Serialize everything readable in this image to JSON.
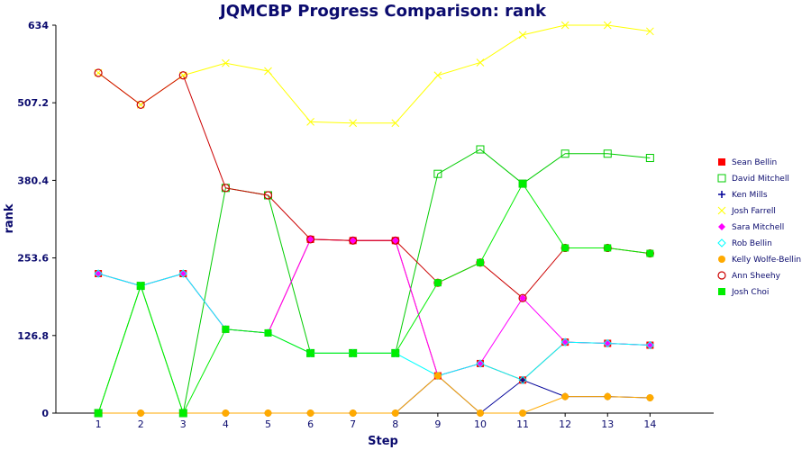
{
  "chart_data": {
    "type": "line",
    "title": "JQMCBP Progress Comparison: rank",
    "xlabel": "Step",
    "ylabel": "rank",
    "x": [
      1,
      2,
      3,
      4,
      5,
      6,
      7,
      8,
      9,
      10,
      11,
      12,
      13,
      14
    ],
    "xlim": [
      0,
      15.5
    ],
    "ylim": [
      0,
      634
    ],
    "yticks": [
      "0",
      "126.8",
      "253.6",
      "380.4",
      "507.2",
      "634"
    ],
    "grid": false,
    "legend_position": "right",
    "series": [
      {
        "name": "Sean Bellin",
        "color": "#ff0000",
        "marker": "square-filled",
        "values": [
          228,
          208,
          228,
          137,
          131,
          284,
          282,
          282,
          61,
          81,
          54,
          116,
          114,
          111
        ]
      },
      {
        "name": "David Mitchell",
        "color": "#00cc00",
        "marker": "square-open",
        "values": [
          0,
          208,
          0,
          368,
          356,
          98,
          98,
          98,
          391,
          431,
          375,
          424,
          424,
          417
        ]
      },
      {
        "name": "Ken Mills",
        "color": "#000099",
        "marker": "plus",
        "values": [
          0,
          0,
          0,
          0,
          0,
          0,
          0,
          0,
          61,
          0,
          54,
          27,
          27,
          25
        ]
      },
      {
        "name": "Josh Farrell",
        "color": "#ffff00",
        "marker": "cross",
        "values": [
          556,
          504,
          552,
          572,
          559,
          476,
          474,
          474,
          552,
          573,
          618,
          634,
          634,
          624
        ]
      },
      {
        "name": "Sara Mitchell",
        "color": "#ff00ff",
        "marker": "diamond",
        "values": [
          228,
          208,
          228,
          137,
          131,
          284,
          282,
          282,
          61,
          81,
          188,
          116,
          114,
          111
        ]
      },
      {
        "name": "Rob Bellin",
        "color": "#00ffff",
        "marker": "diamond-open",
        "values": [
          228,
          208,
          228,
          137,
          131,
          98,
          98,
          98,
          61,
          81,
          54,
          116,
          114,
          111
        ]
      },
      {
        "name": "Kelly Wolfe-Bellin",
        "color": "#ffaa00",
        "marker": "circle-filled",
        "values": [
          0,
          0,
          0,
          0,
          0,
          0,
          0,
          0,
          61,
          0,
          0,
          27,
          27,
          25
        ]
      },
      {
        "name": "Ann Sheehy",
        "color": "#cc0000",
        "marker": "circle-open",
        "values": [
          556,
          504,
          552,
          368,
          356,
          284,
          282,
          282,
          213,
          246,
          188,
          270,
          270,
          261
        ]
      },
      {
        "name": "Josh Choi",
        "color": "#00ee00",
        "marker": "square-filled",
        "values": [
          0,
          208,
          0,
          137,
          131,
          98,
          98,
          98,
          213,
          246,
          375,
          270,
          270,
          261
        ]
      }
    ]
  }
}
